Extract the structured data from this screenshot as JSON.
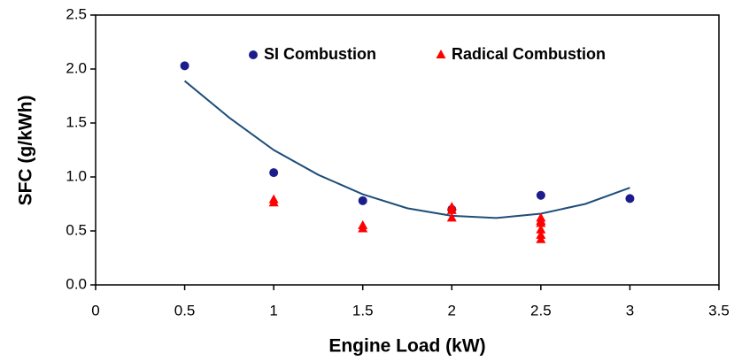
{
  "chart_data": {
    "type": "scatter",
    "xlabel": "Engine Load (kW)",
    "ylabel": "SFC (g/kWh)",
    "xlim": [
      0,
      3.5
    ],
    "xticks": [
      0,
      0.5,
      1,
      1.5,
      2,
      2.5,
      3,
      3.5
    ],
    "ylim": [
      0,
      2.5
    ],
    "yticks": [
      {
        "value": 0,
        "label": "0.0"
      },
      0.5,
      {
        "value": 1,
        "label": "1.0"
      },
      1.5,
      {
        "value": 2,
        "label": "2.0"
      },
      2.5
    ],
    "legend": "top",
    "series": [
      {
        "name": "SI Combustion",
        "color": "#1c1c8c",
        "marker": "circle",
        "x": [
          0.5,
          1,
          1.5,
          2,
          2.5,
          3
        ],
        "values": [
          2.03,
          1.04,
          0.78,
          0.7,
          0.83,
          0.8
        ]
      },
      {
        "name": "Radical Combustion",
        "color": "#ff0000",
        "marker": "triangle",
        "x": [
          1,
          1,
          1.5,
          1.5,
          2,
          2,
          2,
          2.5,
          2.5,
          2.5,
          2.5,
          2.5,
          2.5
        ],
        "values": [
          0.79,
          0.76,
          0.55,
          0.52,
          0.72,
          0.69,
          0.62,
          0.62,
          0.59,
          0.57,
          0.51,
          0.46,
          0.42
        ]
      }
    ],
    "trendline": {
      "color": "#1f4e79",
      "x": [
        0.5,
        0.75,
        1,
        1.25,
        1.5,
        1.75,
        2,
        2.25,
        2.5,
        2.75,
        3
      ],
      "values": [
        1.89,
        1.55,
        1.25,
        1.02,
        0.84,
        0.71,
        0.64,
        0.62,
        0.66,
        0.75,
        0.9
      ]
    }
  }
}
